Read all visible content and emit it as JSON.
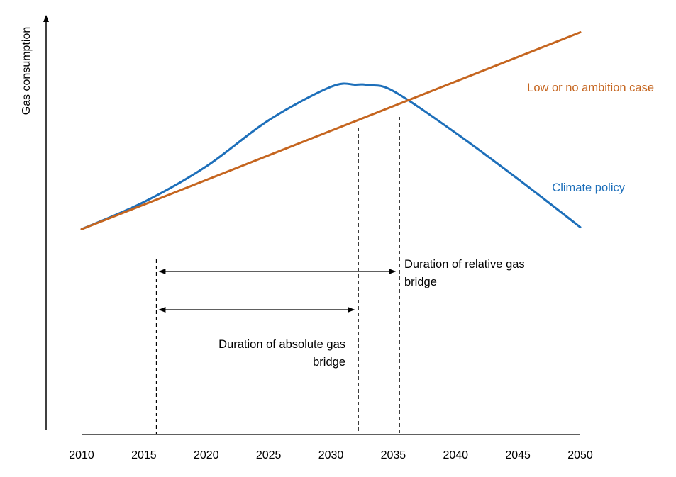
{
  "chart_data": {
    "type": "line",
    "title": "",
    "xlabel": "",
    "ylabel": "Gas consumption",
    "categories": [
      "2010",
      "2015",
      "2020",
      "2025",
      "2030",
      "2035",
      "2040",
      "2045",
      "2050"
    ],
    "xlim": [
      2010,
      2050
    ],
    "ylim": [
      0,
      100
    ],
    "grid": false,
    "series": [
      {
        "name": "Low or no ambition case",
        "color": "#C5651F",
        "x": [
          2010,
          2050
        ],
        "y": [
          49,
          96
        ]
      },
      {
        "name": "Climate policy",
        "color": "#1D6FBA",
        "x": [
          2010,
          2015,
          2020,
          2025,
          2030,
          2032,
          2033,
          2035,
          2040,
          2045,
          2050
        ],
        "y": [
          49,
          55.5,
          64,
          75,
          83,
          83.5,
          83.4,
          82,
          72,
          61,
          49.5
        ]
      }
    ],
    "markers": [
      {
        "name": "start",
        "x": 2016
      },
      {
        "name": "peak",
        "x": 2032.2
      },
      {
        "name": "crossing",
        "x": 2035.5
      }
    ],
    "annotations": [
      {
        "name": "relative",
        "from": 2016,
        "to": 2035.5,
        "lines": [
          "Duration of relative gas",
          "bridge"
        ]
      },
      {
        "name": "absolute",
        "from": 2016,
        "to": 2032.2,
        "lines": [
          "Duration of absolute gas",
          "bridge"
        ]
      }
    ]
  }
}
